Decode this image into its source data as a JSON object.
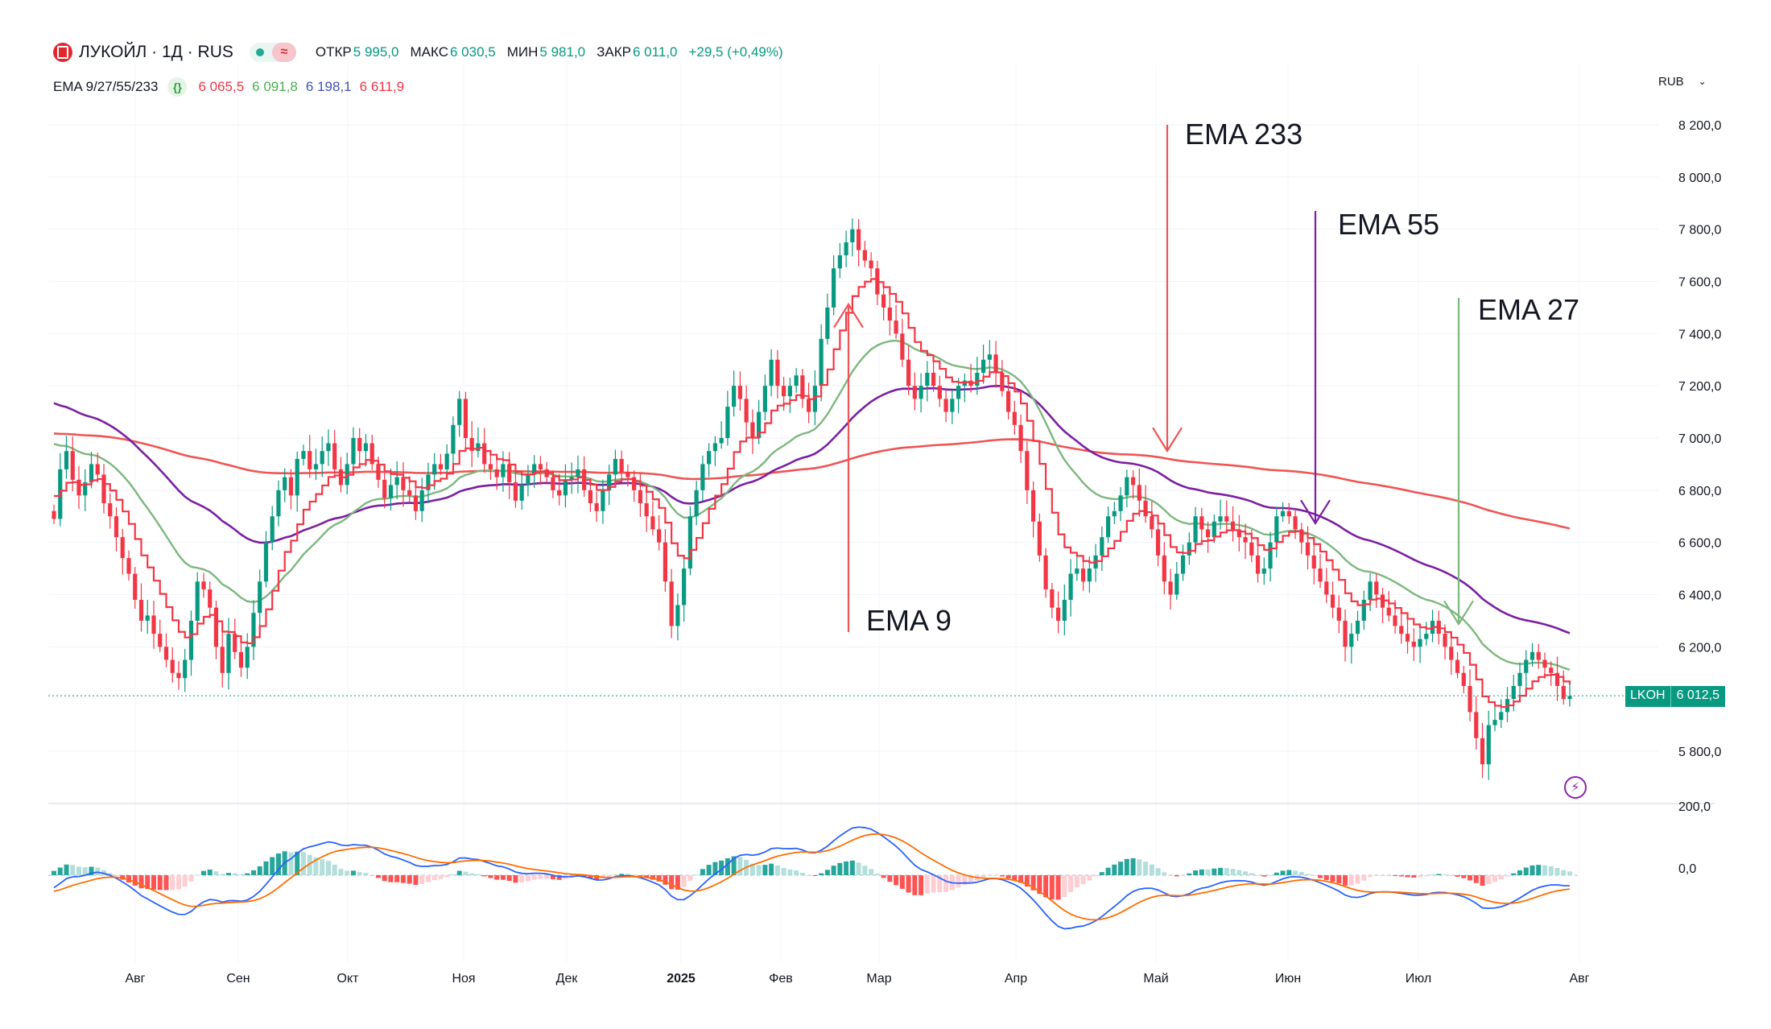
{
  "header": {
    "symbol": "ЛУКОЙЛ · 1Д · RUS",
    "open_label": "ОТКР",
    "open": "5 995,0",
    "high_label": "МАКС",
    "high": "6 030,5",
    "low_label": "МИН",
    "low": "5 981,0",
    "close_label": "ЗАКР",
    "close": "6 011,0",
    "change": "+29,5 (+0,49%)"
  },
  "ema_legend": {
    "name": "EMA 9/27/55/233",
    "badge": "{}",
    "values": [
      "6 065,5",
      "6 091,8",
      "6 198,1",
      "6 611,9"
    ]
  },
  "currency": "RUB",
  "price_tag": {
    "ticker": "LKOH",
    "value": "6 012,5"
  },
  "annotations": [
    {
      "text": "EMA 233"
    },
    {
      "text": "EMA 55"
    },
    {
      "text": "EMA 27"
    },
    {
      "text": "EMA 9"
    }
  ],
  "colors": {
    "up": "#089981",
    "down": "#f23645",
    "ema9": "#f23645",
    "ema27": "#7cb77e",
    "ema55": "#7b1fa2",
    "ema233": "#f05454",
    "macd": "#2962ff",
    "signal": "#ff6d00",
    "hist_up_strong": "#26a69a",
    "hist_up_weak": "#b2dfdb",
    "hist_down_strong": "#ff5252",
    "hist_down_weak": "#ffcdd2"
  },
  "chart_data": {
    "type": "candlestick",
    "y_axis": {
      "ticks": [
        "8 200,0",
        "8 000,0",
        "7 800,0",
        "7 600,0",
        "7 400,0",
        "7 200,0",
        "7 000,0",
        "6 800,0",
        "6 600,0",
        "6 400,0",
        "6 200,0",
        "5 800,0"
      ],
      "range": [
        5700,
        8300
      ]
    },
    "x_axis": {
      "ticks": [
        "Авг",
        "Сен",
        "Окт",
        "Ноя",
        "Дек",
        "2025",
        "Фев",
        "Мар",
        "Апр",
        "Май",
        "Июн",
        "Июл",
        "Авг"
      ]
    },
    "current_price": 6012.5,
    "close_series": [
      6690,
      6880,
      6950,
      6840,
      6780,
      6830,
      6900,
      6860,
      6750,
      6700,
      6620,
      6540,
      6480,
      6380,
      6300,
      6320,
      6250,
      6200,
      6150,
      6100,
      6080,
      6150,
      6300,
      6450,
      6420,
      6350,
      6200,
      6100,
      6250,
      6180,
      6120,
      6200,
      6330,
      6450,
      6600,
      6700,
      6800,
      6850,
      6780,
      6920,
      6950,
      6880,
      6900,
      6950,
      6980,
      6880,
      6820,
      6900,
      7000,
      6950,
      6980,
      6900,
      6840,
      6770,
      6820,
      6850,
      6800,
      6780,
      6720,
      6800,
      6860,
      6900,
      6880,
      6940,
      7050,
      7150,
      7000,
      6950,
      6980,
      6900,
      6880,
      6850,
      6900,
      6830,
      6760,
      6820,
      6860,
      6900,
      6880,
      6850,
      6800,
      6780,
      6840,
      6850,
      6880,
      6800,
      6750,
      6720,
      6800,
      6860,
      6920,
      6870,
      6850,
      6800,
      6750,
      6700,
      6650,
      6600,
      6450,
      6280,
      6360,
      6500,
      6700,
      6800,
      6900,
      6950,
      6980,
      7000,
      7120,
      7200,
      7150,
      7060,
      7000,
      7100,
      7200,
      7300,
      7200,
      7160,
      7200,
      7240,
      7150,
      7100,
      7200,
      7380,
      7500,
      7650,
      7700,
      7750,
      7800,
      7720,
      7680,
      7650,
      7550,
      7500,
      7450,
      7400,
      7300,
      7200,
      7150,
      7200,
      7250,
      7200,
      7150,
      7100,
      7150,
      7200,
      7220,
      7200,
      7250,
      7300,
      7320,
      7250,
      7180,
      7100,
      7050,
      6950,
      6800,
      6680,
      6550,
      6420,
      6350,
      6300,
      6380,
      6480,
      6500,
      6450,
      6500,
      6550,
      6620,
      6700,
      6720,
      6780,
      6850,
      6820,
      6760,
      6700,
      6650,
      6550,
      6450,
      6400,
      6480,
      6550,
      6600,
      6700,
      6650,
      6620,
      6680,
      6700,
      6680,
      6650,
      6620,
      6600,
      6550,
      6480,
      6500,
      6600,
      6700,
      6720,
      6700,
      6650,
      6600,
      6550,
      6500,
      6450,
      6400,
      6350,
      6300,
      6200,
      6250,
      6300,
      6380,
      6450,
      6400,
      6350,
      6320,
      6280,
      6250,
      6220,
      6200,
      6230,
      6250,
      6300,
      6250,
      6200,
      6150,
      6100,
      6050,
      5950,
      5850,
      5750,
      5900,
      5920,
      5950,
      6000,
      6050,
      6100,
      6150,
      6180,
      6150,
      6120,
      6100,
      6050,
      6000,
      6011
    ],
    "ema_labels": [
      "EMA 9",
      "EMA 27",
      "EMA 55",
      "EMA 233"
    ],
    "macd_axis": {
      "ticks": [
        "200,0",
        "0,0"
      ],
      "range": [
        -260,
        220
      ]
    }
  }
}
